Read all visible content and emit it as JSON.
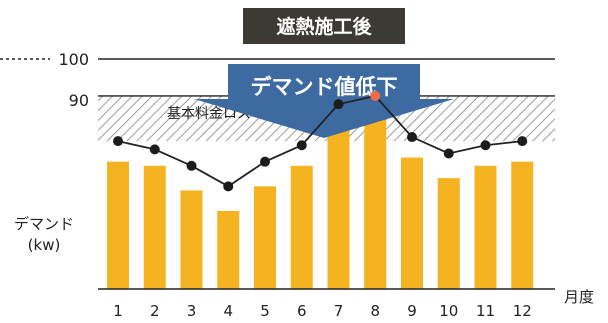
{
  "header": {
    "title": "遮熱施工後",
    "arrow_label": "デマンド値低下"
  },
  "chart_data": {
    "type": "bar",
    "title": "遮熱施工後",
    "categories": [
      "1",
      "2",
      "3",
      "4",
      "5",
      "6",
      "7",
      "8",
      "9",
      "10",
      "11",
      "12"
    ],
    "series": [
      {
        "values": [
          75,
          74,
          68,
          63,
          69,
          74,
          85,
          88,
          76,
          71,
          74,
          75
        ]
      }
    ],
    "line_values": [
      80,
      78,
      74,
      69,
      75,
      79,
      89,
      91,
      81,
      77,
      79,
      80
    ],
    "peak_index": 7,
    "yticks": [
      90,
      100
    ],
    "ylim": [
      44,
      100
    ],
    "reference_lines": [
      100
    ],
    "shaded_band": {
      "from": 80,
      "to": 91,
      "label": "基本料金ロス"
    },
    "ylabel": [
      "デマンド",
      "(kw)"
    ],
    "xlabel": "月度",
    "colors": {
      "bar": "#f6b321",
      "arrow": "#3d6aa0",
      "title_box": "#3d3a35",
      "peak_point": "#ee6a4b",
      "point": "#1c1c1c"
    }
  }
}
